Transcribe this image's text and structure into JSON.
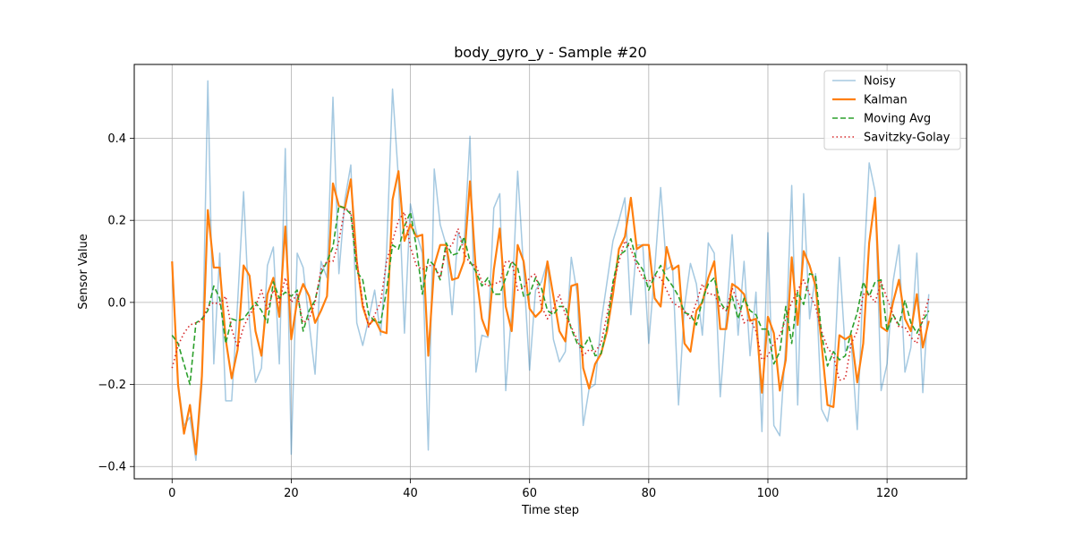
{
  "chart_data": {
    "type": "line",
    "title": "body_gyro_y - Sample #20",
    "xlabel": "Time step",
    "ylabel": "Sensor Value",
    "xlim": [
      -6.35,
      133.35
    ],
    "ylim": [
      -0.43,
      0.58
    ],
    "xticks": [
      0,
      20,
      40,
      60,
      80,
      100,
      120
    ],
    "yticks": [
      -0.4,
      -0.2,
      0.0,
      0.2,
      0.4
    ],
    "ytick_labels": [
      "−0.4",
      "−0.2",
      "0.0",
      "0.2",
      "0.4"
    ],
    "grid": true,
    "legend_position": "top-right",
    "x": [
      0,
      1,
      2,
      3,
      4,
      5,
      6,
      7,
      8,
      9,
      10,
      11,
      12,
      13,
      14,
      15,
      16,
      17,
      18,
      19,
      20,
      21,
      22,
      23,
      24,
      25,
      26,
      27,
      28,
      29,
      30,
      31,
      32,
      33,
      34,
      35,
      36,
      37,
      38,
      39,
      40,
      41,
      42,
      43,
      44,
      45,
      46,
      47,
      48,
      49,
      50,
      51,
      52,
      53,
      54,
      55,
      56,
      57,
      58,
      59,
      60,
      61,
      62,
      63,
      64,
      65,
      66,
      67,
      68,
      69,
      70,
      71,
      72,
      73,
      74,
      75,
      76,
      77,
      78,
      79,
      80,
      81,
      82,
      83,
      84,
      85,
      86,
      87,
      88,
      89,
      90,
      91,
      92,
      93,
      94,
      95,
      96,
      97,
      98,
      99,
      100,
      101,
      102,
      103,
      104,
      105,
      106,
      107,
      108,
      109,
      110,
      111,
      112,
      113,
      114,
      115,
      116,
      117,
      118,
      119,
      120,
      121,
      122,
      123,
      124,
      125,
      126,
      127
    ],
    "series": [
      {
        "name": "Noisy",
        "color": "#1f77b4",
        "style": "solid",
        "values": [
          0.1,
          -0.2,
          -0.3,
          -0.28,
          -0.385,
          -0.2,
          0.54,
          -0.15,
          0.12,
          -0.24,
          -0.24,
          0.0,
          0.27,
          -0.05,
          -0.195,
          -0.16,
          0.09,
          0.135,
          -0.15,
          0.375,
          -0.37,
          0.12,
          0.085,
          -0.05,
          -0.175,
          0.1,
          0.06,
          0.5,
          0.07,
          0.25,
          0.335,
          -0.05,
          -0.105,
          -0.04,
          0.03,
          -0.08,
          0.12,
          0.52,
          0.3,
          -0.075,
          0.24,
          0.17,
          0.12,
          -0.36,
          0.325,
          0.19,
          0.14,
          -0.03,
          0.17,
          0.14,
          0.405,
          -0.17,
          -0.08,
          -0.085,
          0.23,
          0.265,
          -0.215,
          -0.02,
          0.32,
          0.08,
          -0.165,
          0.03,
          0.05,
          0.1,
          -0.09,
          -0.145,
          -0.12,
          0.11,
          0.02,
          -0.3,
          -0.21,
          -0.2,
          -0.05,
          0.05,
          0.15,
          0.2,
          0.255,
          -0.03,
          0.14,
          0.14,
          -0.1,
          0.08,
          0.28,
          0.08,
          0.09,
          -0.25,
          -0.01,
          0.095,
          0.045,
          -0.08,
          0.145,
          0.12,
          -0.23,
          -0.04,
          0.165,
          -0.08,
          0.1,
          -0.13,
          0.025,
          -0.315,
          0.17,
          -0.3,
          -0.325,
          -0.1,
          0.285,
          -0.25,
          0.265,
          -0.04,
          0.07,
          -0.26,
          -0.29,
          -0.2,
          0.11,
          -0.12,
          -0.1,
          -0.31,
          0.06,
          0.34,
          0.27,
          -0.215,
          -0.15,
          0.05,
          0.14,
          -0.17,
          -0.11,
          0.12,
          -0.22,
          0.02
        ]
      },
      {
        "name": "Kalman",
        "color": "#ff7f0e",
        "style": "solid",
        "values": [
          0.1,
          -0.2,
          -0.32,
          -0.25,
          -0.37,
          -0.18,
          0.225,
          0.085,
          0.085,
          -0.09,
          -0.185,
          -0.115,
          0.09,
          0.065,
          -0.07,
          -0.13,
          0.02,
          0.06,
          -0.035,
          0.185,
          -0.09,
          0.005,
          0.045,
          0.015,
          -0.05,
          -0.02,
          0.015,
          0.29,
          0.235,
          0.23,
          0.3,
          0.1,
          -0.01,
          -0.055,
          -0.04,
          -0.07,
          -0.075,
          0.25,
          0.32,
          0.15,
          0.19,
          0.16,
          0.165,
          -0.13,
          0.09,
          0.14,
          0.14,
          0.055,
          0.06,
          0.1,
          0.295,
          0.075,
          -0.04,
          -0.08,
          0.08,
          0.18,
          -0.01,
          -0.07,
          0.14,
          0.1,
          -0.015,
          -0.035,
          -0.02,
          0.1,
          0.015,
          -0.07,
          -0.095,
          0.04,
          0.045,
          -0.16,
          -0.21,
          -0.15,
          -0.125,
          -0.07,
          0.02,
          0.13,
          0.16,
          0.255,
          0.13,
          0.14,
          0.14,
          0.01,
          -0.01,
          0.135,
          0.08,
          0.09,
          -0.1,
          -0.12,
          -0.02,
          0.0,
          0.06,
          0.1,
          -0.065,
          -0.065,
          0.045,
          0.035,
          0.02,
          -0.045,
          -0.04,
          -0.22,
          -0.035,
          -0.075,
          -0.215,
          -0.14,
          0.11,
          -0.055,
          0.125,
          0.09,
          0.04,
          -0.1,
          -0.25,
          -0.255,
          -0.08,
          -0.09,
          -0.08,
          -0.195,
          -0.1,
          0.145,
          0.255,
          -0.06,
          -0.07,
          0.0,
          0.055,
          -0.04,
          -0.07,
          0.02,
          -0.11,
          -0.045
        ]
      },
      {
        "name": "Moving Avg",
        "color": "#2ca02c",
        "style": "dashed",
        "values": [
          -0.08,
          -0.1,
          -0.15,
          -0.2,
          -0.05,
          -0.04,
          -0.02,
          0.04,
          0.01,
          -0.1,
          -0.04,
          -0.045,
          -0.04,
          -0.02,
          0.0,
          -0.02,
          -0.05,
          0.05,
          0.01,
          0.025,
          0.015,
          0.03,
          -0.07,
          -0.02,
          0.005,
          0.07,
          0.1,
          0.135,
          0.235,
          0.23,
          0.215,
          0.075,
          0.055,
          -0.03,
          -0.045,
          -0.05,
          0.03,
          0.14,
          0.13,
          0.185,
          0.22,
          0.135,
          0.02,
          0.105,
          0.09,
          0.055,
          0.145,
          0.115,
          0.12,
          0.16,
          0.1,
          0.075,
          0.04,
          0.06,
          0.02,
          0.02,
          0.06,
          0.1,
          0.085,
          0.015,
          0.02,
          0.06,
          0.035,
          -0.02,
          -0.03,
          -0.01,
          -0.01,
          -0.065,
          -0.1,
          -0.11,
          -0.085,
          -0.13,
          -0.125,
          -0.06,
          0.05,
          0.115,
          0.125,
          0.155,
          0.1,
          0.08,
          0.03,
          0.065,
          0.09,
          0.06,
          0.04,
          0.015,
          -0.025,
          -0.03,
          -0.055,
          0.005,
          0.045,
          0.06,
          0.0,
          -0.02,
          0.015,
          -0.04,
          0.01,
          -0.02,
          -0.03,
          -0.065,
          -0.065,
          -0.15,
          -0.12,
          -0.01,
          -0.1,
          0.025,
          -0.005,
          0.07,
          0.065,
          -0.075,
          -0.155,
          -0.12,
          -0.14,
          -0.13,
          -0.07,
          -0.025,
          0.05,
          0.015,
          0.05,
          0.055,
          -0.07,
          -0.03,
          -0.055,
          0.005,
          -0.05,
          -0.075,
          -0.045,
          -0.02
        ]
      },
      {
        "name": "Savitzky-Golay",
        "color": "#d62728",
        "style": "dotted",
        "values": [
          -0.16,
          -0.105,
          -0.075,
          -0.055,
          -0.05,
          -0.045,
          -0.01,
          0.0,
          -0.005,
          0.015,
          -0.065,
          -0.11,
          -0.06,
          -0.03,
          -0.01,
          0.03,
          -0.02,
          0.03,
          0.0,
          0.06,
          0.0,
          0.02,
          -0.05,
          -0.04,
          0.0,
          0.08,
          0.1,
          0.1,
          0.15,
          0.23,
          0.22,
          0.1,
          0.0,
          -0.06,
          -0.03,
          0.0,
          0.1,
          0.15,
          0.2,
          0.22,
          0.135,
          0.09,
          0.08,
          0.09,
          0.09,
          0.06,
          0.13,
          0.14,
          0.18,
          0.12,
          0.095,
          0.09,
          0.05,
          0.04,
          0.045,
          0.05,
          0.1,
          0.1,
          0.03,
          0.035,
          0.06,
          0.07,
          -0.01,
          -0.04,
          -0.015,
          0.02,
          -0.03,
          -0.06,
          -0.09,
          -0.13,
          -0.115,
          -0.12,
          -0.1,
          -0.03,
          0.04,
          0.1,
          0.15,
          0.13,
          0.09,
          0.06,
          0.05,
          0.065,
          0.06,
          0.03,
          0.0,
          -0.01,
          -0.02,
          -0.04,
          0.0,
          0.045,
          0.02,
          0.02,
          -0.01,
          -0.02,
          0.035,
          0.0,
          -0.05,
          -0.04,
          -0.07,
          -0.14,
          -0.13,
          -0.1,
          -0.08,
          -0.04,
          0.0,
          0.03,
          0.055,
          0.02,
          -0.01,
          -0.07,
          -0.11,
          -0.13,
          -0.19,
          -0.185,
          -0.1,
          -0.07,
          0.02,
          0.02,
          0.0,
          0.05,
          0.01,
          -0.03,
          -0.06,
          -0.06,
          -0.085,
          -0.1,
          -0.04,
          0.01
        ]
      }
    ]
  }
}
